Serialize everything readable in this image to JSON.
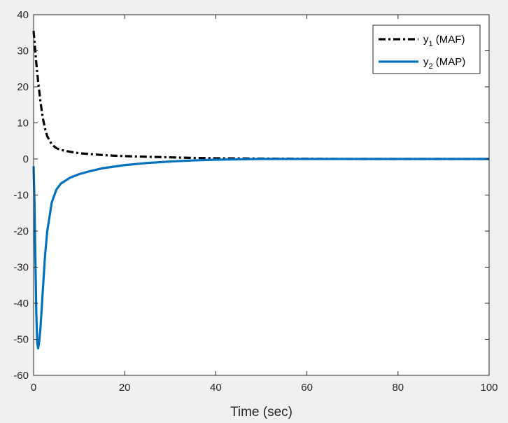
{
  "chart_data": {
    "type": "line",
    "xlabel": "Time (sec)",
    "ylabel": "",
    "title": "",
    "xlim": [
      0,
      100
    ],
    "ylim": [
      -60,
      40
    ],
    "xticks": [
      "0",
      "20",
      "40",
      "60",
      "80",
      "100"
    ],
    "yticks": [
      "40",
      "30",
      "20",
      "10",
      "0",
      "-10",
      "-20",
      "-30",
      "-40",
      "-50",
      "-60"
    ],
    "grid": false,
    "legend_position": "top-right",
    "series": [
      {
        "name": "y1 (MAF)",
        "name_main": "y",
        "name_sub": "1",
        "name_rest": " (MAF)",
        "color": "#000000",
        "style": "dash-dot",
        "x": [
          0,
          0.3,
          0.6,
          1,
          1.5,
          2,
          2.5,
          3,
          4,
          5,
          6,
          8,
          10,
          12,
          15,
          18,
          20,
          25,
          30,
          35,
          40,
          50,
          60,
          70,
          80,
          90,
          100
        ],
        "y": [
          35.5,
          31,
          26.5,
          21.5,
          16,
          11.5,
          8.5,
          6.3,
          4,
          3,
          2.5,
          2,
          1.6,
          1.4,
          1.1,
          0.9,
          0.8,
          0.6,
          0.45,
          0.3,
          0.2,
          0.1,
          0.05,
          0,
          0,
          0,
          0
        ]
      },
      {
        "name": "y2 (MAP)",
        "name_main": "y",
        "name_sub": "2",
        "name_rest": " (MAP)",
        "color": "#0072bd",
        "style": "solid",
        "x": [
          0,
          0.2,
          0.4,
          0.6,
          0.8,
          1,
          1.2,
          1.5,
          2,
          2.5,
          3,
          4,
          5,
          6,
          8,
          10,
          12,
          15,
          20,
          25,
          30,
          35,
          40,
          45,
          50,
          60,
          70,
          80,
          90,
          100
        ],
        "y": [
          -2,
          -12,
          -28,
          -43,
          -51,
          -52.5,
          -51,
          -47,
          -37,
          -27,
          -20,
          -12,
          -8.5,
          -6.8,
          -5.2,
          -4.2,
          -3.5,
          -2.6,
          -1.7,
          -1.1,
          -0.7,
          -0.4,
          -0.2,
          -0.1,
          0,
          0,
          0,
          0,
          0,
          0
        ]
      }
    ]
  }
}
